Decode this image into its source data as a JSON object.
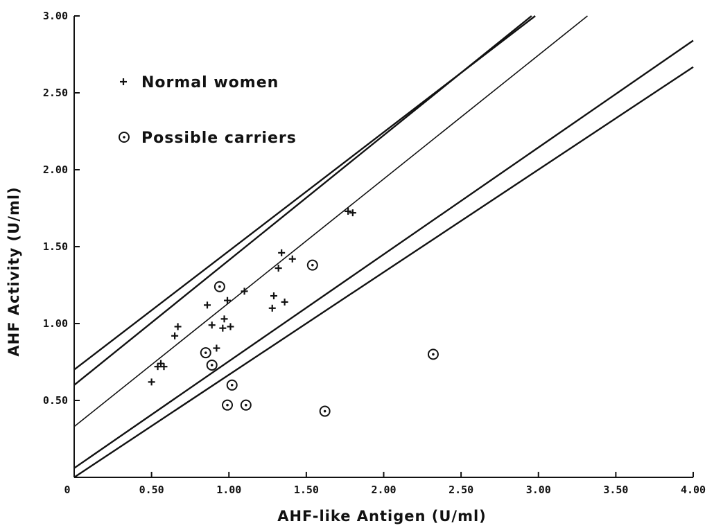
{
  "chart_data": {
    "type": "scatter",
    "title": "",
    "xlabel": "AHF-like Antigen (U/ml)",
    "ylabel": "AHF Activity (U/ml)",
    "xlim": [
      0,
      4.0
    ],
    "ylim": [
      0,
      3.0
    ],
    "grid": false,
    "legend_placement": "top-left",
    "x_ticks": [
      {
        "value": 0,
        "label": "0"
      },
      {
        "value": 0.5,
        "label": "0.50"
      },
      {
        "value": 1.0,
        "label": "1.00"
      },
      {
        "value": 1.5,
        "label": "1.50"
      },
      {
        "value": 2.0,
        "label": "2.00"
      },
      {
        "value": 2.5,
        "label": "2.50"
      },
      {
        "value": 3.0,
        "label": "3.00"
      },
      {
        "value": 3.5,
        "label": "3.50"
      },
      {
        "value": 4.0,
        "label": "4.00"
      }
    ],
    "y_ticks": [
      {
        "value": 0.5,
        "label": "0.50"
      },
      {
        "value": 1.0,
        "label": "1.00"
      },
      {
        "value": 1.5,
        "label": "1.50"
      },
      {
        "value": 2.0,
        "label": "2.00"
      },
      {
        "value": 2.5,
        "label": "2.50"
      },
      {
        "value": 3.0,
        "label": "3.00"
      }
    ],
    "series": [
      {
        "name": "Normal women",
        "marker": "plus",
        "points": [
          [
            0.5,
            0.62
          ],
          [
            0.54,
            0.72
          ],
          [
            0.56,
            0.74
          ],
          [
            0.58,
            0.72
          ],
          [
            0.65,
            0.92
          ],
          [
            0.67,
            0.98
          ],
          [
            0.86,
            1.12
          ],
          [
            0.89,
            0.99
          ],
          [
            0.92,
            0.84
          ],
          [
            0.96,
            0.97
          ],
          [
            0.97,
            1.03
          ],
          [
            0.99,
            1.15
          ],
          [
            1.01,
            0.98
          ],
          [
            1.1,
            1.21
          ],
          [
            1.28,
            1.1
          ],
          [
            1.29,
            1.18
          ],
          [
            1.32,
            1.36
          ],
          [
            1.34,
            1.46
          ],
          [
            1.36,
            1.14
          ],
          [
            1.41,
            1.42
          ],
          [
            1.77,
            1.73
          ],
          [
            1.8,
            1.72
          ]
        ]
      },
      {
        "name": "Possible carriers",
        "marker": "circle-dot",
        "points": [
          [
            0.85,
            0.81
          ],
          [
            0.89,
            0.73
          ],
          [
            0.94,
            1.24
          ],
          [
            0.99,
            0.47
          ],
          [
            1.02,
            0.6
          ],
          [
            1.11,
            0.47
          ],
          [
            1.54,
            1.38
          ],
          [
            1.62,
            0.43
          ],
          [
            2.32,
            0.8
          ]
        ]
      }
    ],
    "reference_lines": [
      {
        "intercept": 0.7,
        "slope": 0.772
      },
      {
        "intercept": 0.6,
        "slope": 0.812
      },
      {
        "intercept": 0.33,
        "slope": 0.805
      },
      {
        "intercept": 0.06,
        "slope": 0.695
      },
      {
        "intercept": 0.0,
        "slope": 0.667
      }
    ]
  }
}
